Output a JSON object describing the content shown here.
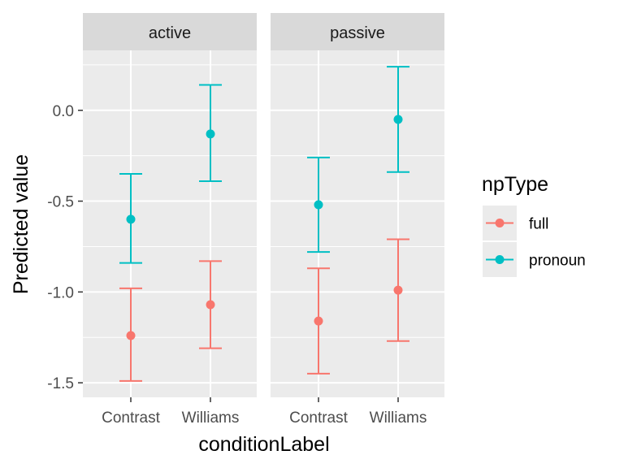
{
  "chart_data": {
    "type": "errorbar",
    "xlabel": "conditionLabel",
    "ylabel": "Predicted value",
    "ylim": [
      -1.58,
      0.33
    ],
    "yticks": [
      0.0,
      -0.5,
      -1.0,
      -1.5
    ],
    "ytick_labels": [
      "0.0",
      "-0.5",
      "-1.0",
      "-1.5"
    ],
    "categories": [
      "Contrast",
      "Williams"
    ],
    "facets": [
      {
        "label": "active",
        "key": "active"
      },
      {
        "label": "passive",
        "key": "passive"
      }
    ],
    "legend": {
      "title": "npType",
      "position": "right"
    },
    "grid": true,
    "series": [
      {
        "name": "full",
        "color": "#F8766D",
        "points": [
          {
            "facet": "active",
            "x": "Contrast",
            "y": -1.24,
            "ymin": -1.49,
            "ymax": -0.98
          },
          {
            "facet": "active",
            "x": "Williams",
            "y": -1.07,
            "ymin": -1.31,
            "ymax": -0.83
          },
          {
            "facet": "passive",
            "x": "Contrast",
            "y": -1.16,
            "ymin": -1.45,
            "ymax": -0.87
          },
          {
            "facet": "passive",
            "x": "Williams",
            "y": -0.99,
            "ymin": -1.27,
            "ymax": -0.71
          }
        ]
      },
      {
        "name": "pronoun",
        "color": "#00BFC4",
        "points": [
          {
            "facet": "active",
            "x": "Contrast",
            "y": -0.6,
            "ymin": -0.84,
            "ymax": -0.35
          },
          {
            "facet": "active",
            "x": "Williams",
            "y": -0.13,
            "ymin": -0.39,
            "ymax": 0.14
          },
          {
            "facet": "passive",
            "x": "Contrast",
            "y": -0.52,
            "ymin": -0.78,
            "ymax": -0.26
          },
          {
            "facet": "passive",
            "x": "Williams",
            "y": -0.05,
            "ymin": -0.34,
            "ymax": 0.24
          }
        ]
      }
    ]
  }
}
